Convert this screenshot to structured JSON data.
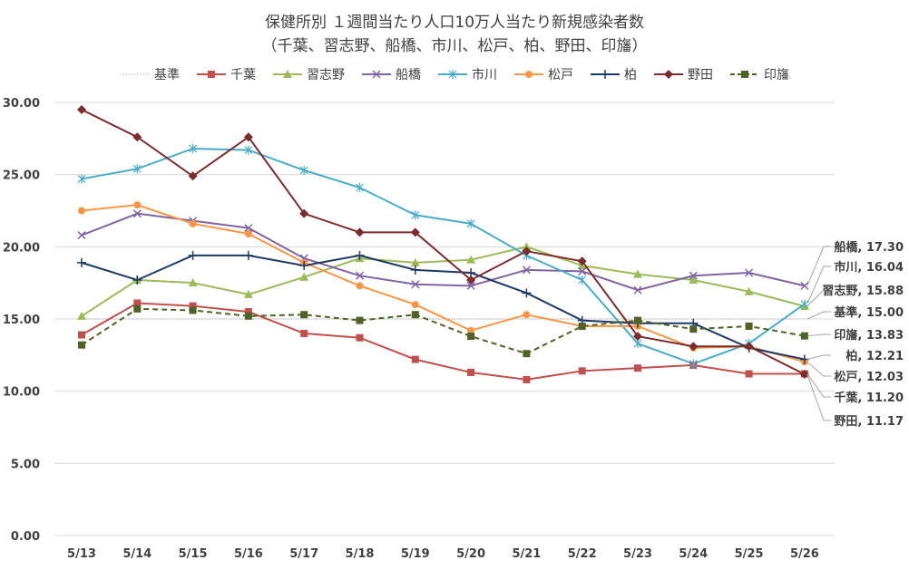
{
  "chart_data": {
    "type": "line",
    "title": "保健所別 １週間当たり人口10万人当たり新規感染者数",
    "subtitle": "（千葉、習志野、船橋、市川、松戸、柏、野田、印旛）",
    "categories": [
      "5/13",
      "5/14",
      "5/15",
      "5/16",
      "5/17",
      "5/18",
      "5/19",
      "5/20",
      "5/21",
      "5/22",
      "5/23",
      "5/24",
      "5/25",
      "5/26"
    ],
    "yticks": [
      "0.00",
      "5.00",
      "10.00",
      "15.00",
      "20.00",
      "25.00",
      "30.00"
    ],
    "ylim": [
      0,
      30
    ],
    "legend_position": "top",
    "series": [
      {
        "name": "基準",
        "color": "#a6a6a6",
        "marker": "none",
        "dash": "dot",
        "end_label": "基準, 15.00",
        "values": [
          15,
          15,
          15,
          15,
          15,
          15,
          15,
          15,
          15,
          15,
          15,
          15,
          15,
          15
        ]
      },
      {
        "name": "千葉",
        "color": "#c0504d",
        "marker": "square",
        "end_label": "千葉, 11.20",
        "values": [
          13.9,
          16.1,
          15.9,
          15.5,
          14.0,
          13.7,
          12.2,
          11.3,
          10.8,
          11.4,
          11.6,
          11.8,
          11.2,
          11.2
        ]
      },
      {
        "name": "習志野",
        "color": "#9bbb59",
        "marker": "triangle",
        "end_label": "習志野, 15.88",
        "values": [
          15.2,
          17.7,
          17.5,
          16.7,
          17.9,
          19.2,
          18.9,
          19.1,
          20.0,
          18.7,
          18.1,
          17.7,
          16.9,
          15.88
        ]
      },
      {
        "name": "船橋",
        "color": "#8064a2",
        "marker": "x",
        "end_label": "船橋, 17.30",
        "values": [
          20.8,
          22.3,
          21.8,
          21.3,
          19.2,
          18.0,
          17.4,
          17.3,
          18.4,
          18.3,
          17.0,
          18.0,
          18.2,
          17.3
        ]
      },
      {
        "name": "市川",
        "color": "#4bacc6",
        "marker": "star",
        "end_label": "市川, 16.04",
        "values": [
          24.7,
          25.4,
          26.8,
          26.7,
          25.3,
          24.1,
          22.2,
          21.6,
          19.4,
          17.7,
          13.3,
          11.9,
          13.3,
          16.04
        ]
      },
      {
        "name": "松戸",
        "color": "#f79646",
        "marker": "circle",
        "end_label": "松戸, 12.03",
        "values": [
          22.5,
          22.9,
          21.6,
          20.9,
          18.9,
          17.3,
          16.0,
          14.2,
          15.3,
          14.5,
          14.5,
          13.0,
          13.1,
          12.03
        ]
      },
      {
        "name": "柏",
        "color": "#1f3864",
        "marker": "plus",
        "end_label": "柏, 12.21",
        "values": [
          18.9,
          17.7,
          19.4,
          19.4,
          18.7,
          19.4,
          18.4,
          18.2,
          16.8,
          14.9,
          14.7,
          14.7,
          13.0,
          12.21
        ]
      },
      {
        "name": "野田",
        "color": "#7b2c2c",
        "marker": "diamond",
        "end_label": "野田, 11.17",
        "values": [
          29.5,
          27.6,
          24.9,
          27.6,
          22.3,
          21.0,
          21.0,
          17.7,
          19.7,
          19.0,
          13.8,
          13.1,
          13.1,
          11.17
        ]
      },
      {
        "name": "印旛",
        "color": "#4f6228",
        "marker": "square",
        "dash": "dash",
        "end_label": "印旛, 13.83",
        "values": [
          13.2,
          15.7,
          15.6,
          15.2,
          15.3,
          14.9,
          15.3,
          13.8,
          12.6,
          14.5,
          14.9,
          14.3,
          14.5,
          13.83
        ]
      }
    ]
  }
}
